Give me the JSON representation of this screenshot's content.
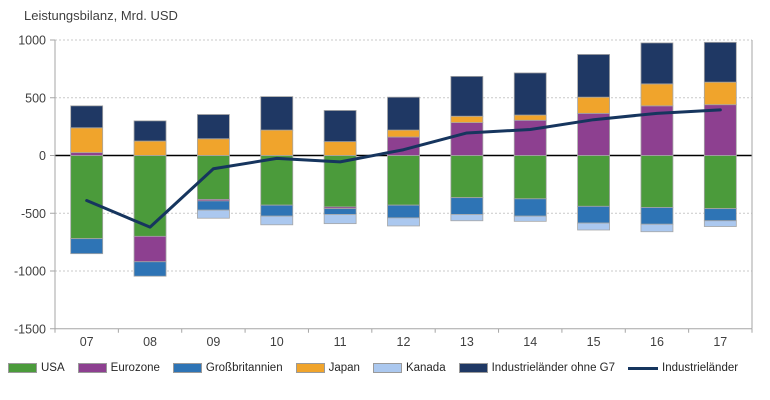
{
  "title": "Leistungsbilanz, Mrd. USD",
  "chart_data": {
    "type": "bar",
    "subtype": "stacked-bars-with-line-overlay",
    "title": "Leistungsbilanz, Mrd. USD",
    "xlabel": "",
    "ylabel": "Mrd. USD",
    "categories": [
      "07",
      "08",
      "09",
      "10",
      "11",
      "12",
      "13",
      "14",
      "15",
      "16",
      "17"
    ],
    "series": [
      {
        "name": "USA",
        "color": "#4B9B3B",
        "values": [
          -720,
          -700,
          -380,
          -430,
          -445,
          -430,
          -365,
          -375,
          -440,
          -450,
          -460
        ]
      },
      {
        "name": "Eurozone",
        "color": "#8D4090",
        "values": [
          25,
          -220,
          -13,
          0,
          -15,
          160,
          285,
          305,
          365,
          430,
          440
        ]
      },
      {
        "name": "Großbritannien",
        "color": "#2E74B5",
        "values": [
          -130,
          -125,
          -80,
          -95,
          -50,
          -110,
          -145,
          -150,
          -145,
          -145,
          -105
        ]
      },
      {
        "name": "Japan",
        "color": "#F0A42C",
        "values": [
          215,
          125,
          145,
          220,
          120,
          60,
          55,
          45,
          140,
          190,
          195
        ]
      },
      {
        "name": "Kanada",
        "color": "#ABC8EF",
        "values": [
          0,
          0,
          -70,
          -75,
          -80,
          -70,
          -55,
          -45,
          -60,
          -65,
          -50
        ]
      },
      {
        "name": "Industrieländer ohne G7",
        "color": "#1F3864",
        "values": [
          190,
          175,
          210,
          290,
          270,
          285,
          345,
          365,
          370,
          355,
          345
        ]
      }
    ],
    "line_series": {
      "name": "Industrieländer",
      "color": "#16355E",
      "values": [
        -390,
        -620,
        -115,
        -25,
        -55,
        50,
        195,
        225,
        310,
        365,
        395
      ]
    },
    "ylim": [
      -1500,
      1000
    ],
    "yticks": [
      1000,
      500,
      0,
      -500,
      -1000,
      -1500
    ],
    "grid": "horizontal-dashed",
    "legend_position": "bottom",
    "colors": {
      "grid": "#c9c9c9",
      "axis": "#a6a6a6",
      "zero_line": "#000000",
      "bar_outline": "#a6a6a6",
      "tick_text": "#3f3f3f"
    }
  }
}
